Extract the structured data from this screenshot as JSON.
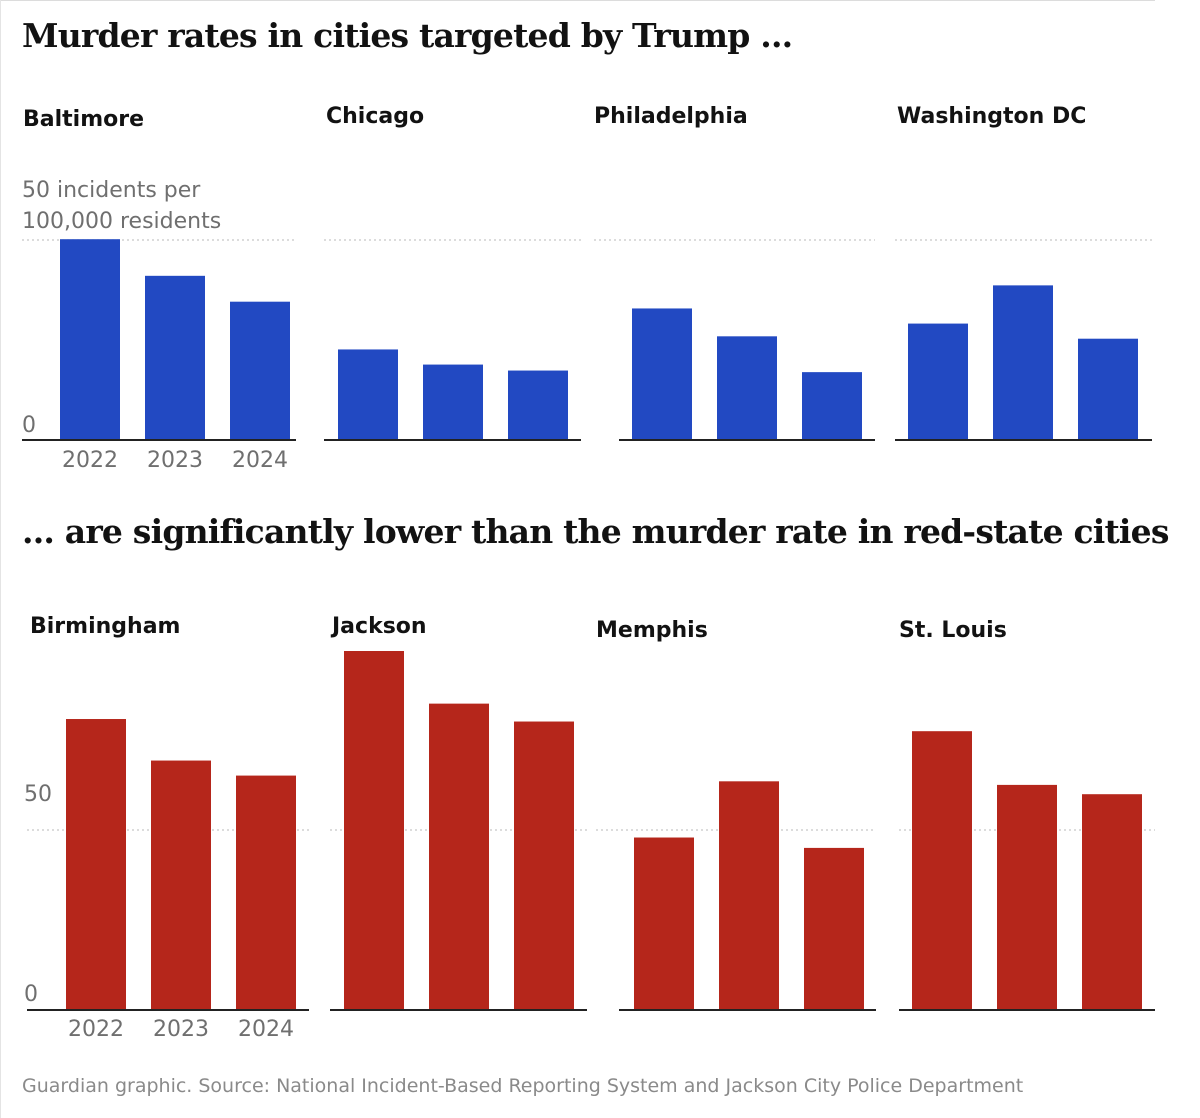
{
  "title": "Murder rates in cities targeted by Trump ...",
  "subtitle": "... are significantly lower than the murder rate in red-state cities",
  "source": "Guardian graphic. Source: National Incident-Based Reporting System and Jackson City Police Department",
  "colors": {
    "targeted": "#2249c2",
    "red_state": "#b5261b",
    "grid": "#c8c8c8",
    "axis": "#222222"
  },
  "chart_data": [
    {
      "type": "bar",
      "title": "Murder rates in cities targeted by Trump ...",
      "categories": [
        "2022",
        "2023",
        "2024"
      ],
      "ylabel": "50 incidents per 100,000 residents",
      "y_ticks": [
        0,
        50
      ],
      "y_tick_labels": [
        "0",
        "50 incidents per 100,000 residents"
      ],
      "ylim": [
        0,
        50
      ],
      "grid": "dotted line at 50",
      "panels": [
        {
          "city": "Baltimore",
          "values": [
            50.2,
            41.0,
            34.5
          ]
        },
        {
          "city": "Chicago",
          "values": [
            22.5,
            18.7,
            17.2
          ]
        },
        {
          "city": "Philadelphia",
          "values": [
            32.8,
            25.8,
            16.8
          ]
        },
        {
          "city": "Washington DC",
          "values": [
            29.0,
            38.6,
            25.2
          ]
        }
      ]
    },
    {
      "type": "bar",
      "title": "... are significantly lower than the murder rate in red-state cities",
      "categories": [
        "2022",
        "2023",
        "2024"
      ],
      "y_ticks": [
        0,
        50
      ],
      "y_tick_labels": [
        "0",
        "50"
      ],
      "ylim": [
        0,
        100
      ],
      "grid": "dotted line at 50",
      "panels": [
        {
          "city": "Birmingham",
          "values": [
            81.0,
            69.4,
            65.2
          ]
        },
        {
          "city": "Jackson",
          "values": [
            100.0,
            85.3,
            80.3
          ]
        },
        {
          "city": "Memphis",
          "values": [
            47.9,
            63.6,
            45.0
          ]
        },
        {
          "city": "St. Louis",
          "values": [
            77.6,
            62.6,
            60.0
          ]
        }
      ]
    }
  ]
}
